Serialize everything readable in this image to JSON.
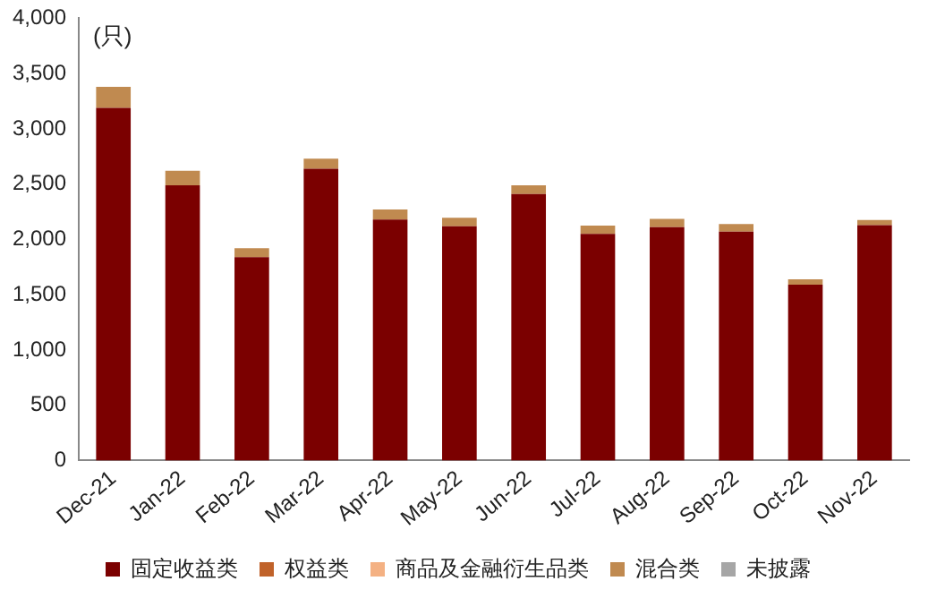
{
  "chart_data": {
    "type": "bar",
    "stacked": true,
    "ylabel": "(只)",
    "categories": [
      "Dec-21",
      "Jan-22",
      "Feb-22",
      "Mar-22",
      "Apr-22",
      "May-22",
      "Jun-22",
      "Jul-22",
      "Aug-22",
      "Sep-22",
      "Oct-22",
      "Nov-22"
    ],
    "series": [
      {
        "name": "固定收益类",
        "color": "#7b0000",
        "values": [
          3190,
          2490,
          1840,
          2640,
          2180,
          2120,
          2410,
          2050,
          2110,
          2070,
          1590,
          2130
        ]
      },
      {
        "name": "权益类",
        "color": "#c0622a",
        "values": [
          0,
          0,
          0,
          0,
          0,
          0,
          0,
          0,
          0,
          0,
          0,
          0
        ]
      },
      {
        "name": "商品及金融衍生品类",
        "color": "#f4b183",
        "values": [
          0,
          0,
          0,
          0,
          0,
          0,
          0,
          0,
          0,
          0,
          0,
          0
        ]
      },
      {
        "name": "混合类",
        "color": "#c08a50",
        "values": [
          190,
          130,
          80,
          90,
          90,
          75,
          80,
          75,
          75,
          70,
          50,
          45
        ]
      },
      {
        "name": "未披露",
        "color": "#a6a6a6",
        "values": [
          0,
          0,
          0,
          0,
          0,
          0,
          0,
          0,
          0,
          0,
          0,
          0
        ]
      }
    ],
    "ylim": [
      0,
      4000
    ],
    "yticks": [
      0,
      {
        "value": 500,
        "label": "500"
      },
      {
        "value": 1000,
        "label": "1,000"
      },
      {
        "value": 1500,
        "label": "1,500"
      },
      {
        "value": 2000,
        "label": "2,000"
      },
      {
        "value": 2500,
        "label": "2,500"
      },
      {
        "value": 3000,
        "label": "3,000"
      },
      {
        "value": 3500,
        "label": "3,500"
      },
      {
        "value": 4000,
        "label": "4,000"
      }
    ],
    "grid": false,
    "legend": "bottom"
  }
}
